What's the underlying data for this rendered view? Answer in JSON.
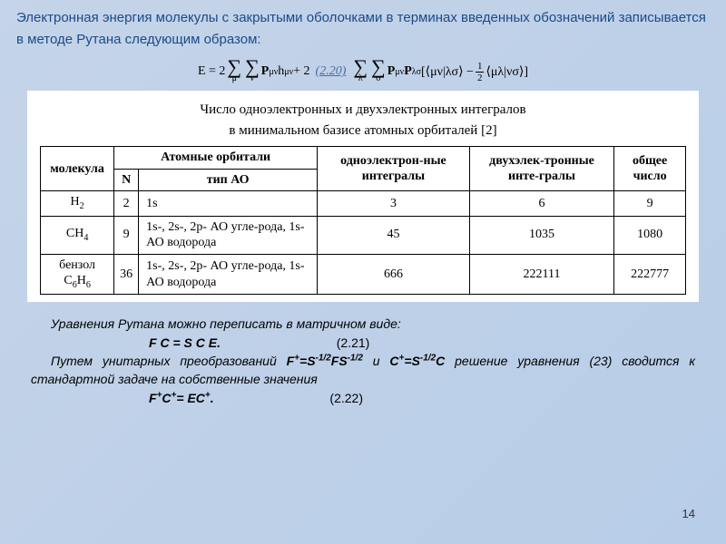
{
  "intro": "Электронная энергия молекулы с закрытыми оболочками в терминах введенных обозначений записывается в методе  Рутана следующим образом:",
  "equation": {
    "lhs": "E = 2",
    "indices1": "μ",
    "indices2": "ν",
    "term1": "P",
    "sub_pmv": "μν",
    "term1b": "h",
    "sub_hmv": "μν",
    "plus": " + 2",
    "label": "(2.20)",
    "indices3": "λ",
    "indices4": "σ",
    "term2a": "P",
    "sub_p2a": "μν",
    "term2b": "P",
    "sub_p2b": "λσ",
    "bra": "[⟨μν|λσ⟩ − ",
    "half_num": "1",
    "half_den": "2",
    "ket": "⟨μλ|νσ⟩]"
  },
  "table": {
    "caption_l1": "Число одноэлектронных и двухэлектронных интегралов",
    "caption_l2": "в минимальном базисе атомных орбиталей [2]",
    "head": {
      "mol": "молекула",
      "ao": "Атомные орбитали",
      "n": "N",
      "type": "тип АО",
      "one": "одноэлектрон-ные интегралы",
      "two": "двухэлек-тронные инте-гралы",
      "total": "общее число"
    },
    "rows": [
      {
        "mol_html": "H<span class='sub2'>2</span>",
        "n": "2",
        "type": "1s",
        "one": "3",
        "two": "6",
        "total": "9"
      },
      {
        "mol_html": "CH<span class='sub2'>4</span>",
        "n": "9",
        "type": "1s-, 2s-, 2p- АО угле-рода, 1s-АО водорода",
        "one": "45",
        "two": "1035",
        "total": "1080"
      },
      {
        "mol_html": "бензол C<span class='sub2'>6</span>H<span class='sub2'>6</span>",
        "n": "36",
        "type": "1s-, 2s-, 2p- АО угле-рода, 1s-АО водорода",
        "one": "666",
        "two": "222111",
        "total": "222777"
      }
    ]
  },
  "bottom": {
    "l1": "Уравнения Рутана можно переписать в матричном виде:",
    "eq1_lhs": "F C = S C E.",
    "eq1_num": "(2.21)",
    "l2a": "Путем унитарных преобразований ",
    "f1": "F",
    "fp": "+",
    "eqs": "=S",
    "m12": "-1/2",
    "fs": "FS",
    "and": " и ",
    "c1": "C",
    "cp": "+",
    "c12": "-1/2",
    "Cend": "C",
    "l2b": "  решение уравнения (23) сводится к стандартной задаче на собственные значения",
    "eq2_lhs": "F",
    "eq2_p": "+",
    "eq2_c": "C",
    "eq2_mid": "= EC",
    "eq2_dot": ".",
    "eq2_num": "(2.22)"
  },
  "pagenum": "14"
}
